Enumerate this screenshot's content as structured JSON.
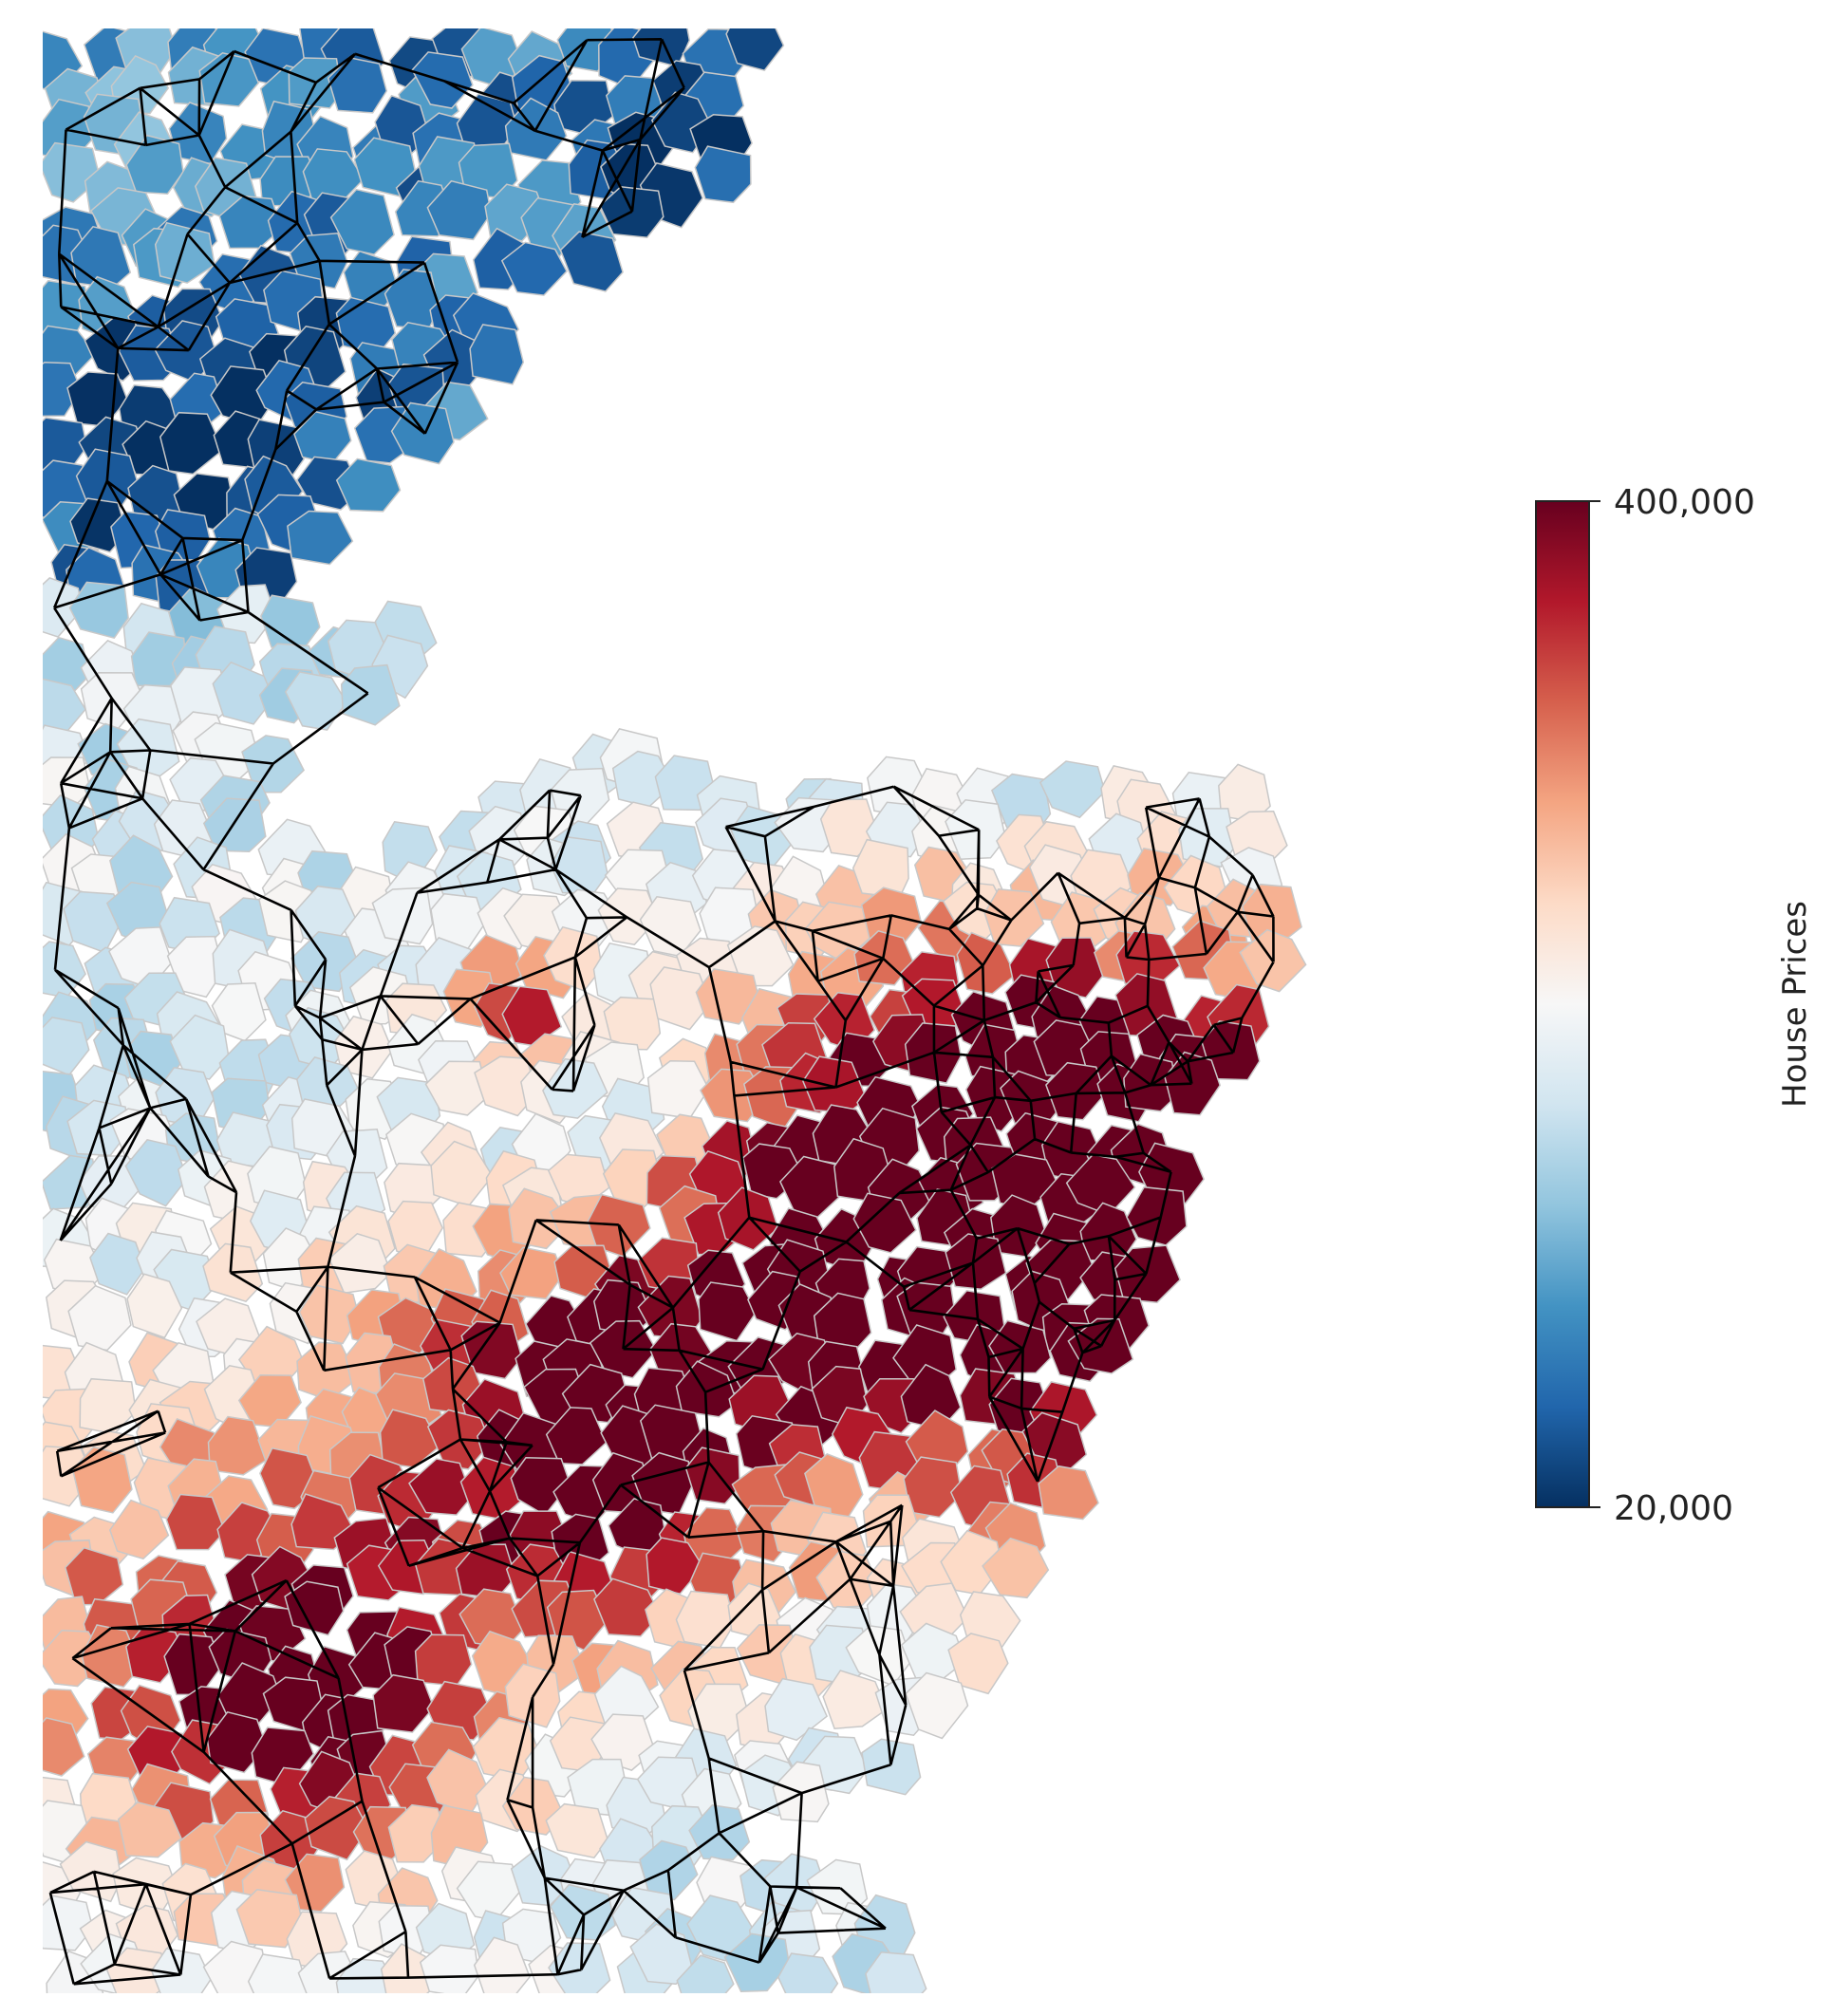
{
  "colorbar": {
    "label": "House Prices",
    "max_label": "400,000",
    "min_label": "20,000",
    "min": 20000,
    "max": 400000,
    "colormap": "RdBu_r",
    "stops": [
      "#053061",
      "#2166ac",
      "#4393c3",
      "#92c5de",
      "#d1e5f0",
      "#f7f7f7",
      "#fddbc7",
      "#f4a582",
      "#d6604d",
      "#b2182b",
      "#67001f"
    ]
  },
  "map": {
    "boundary_color": "#c8c8c8",
    "edge_color": "#000000",
    "background": "#ffffff"
  }
}
